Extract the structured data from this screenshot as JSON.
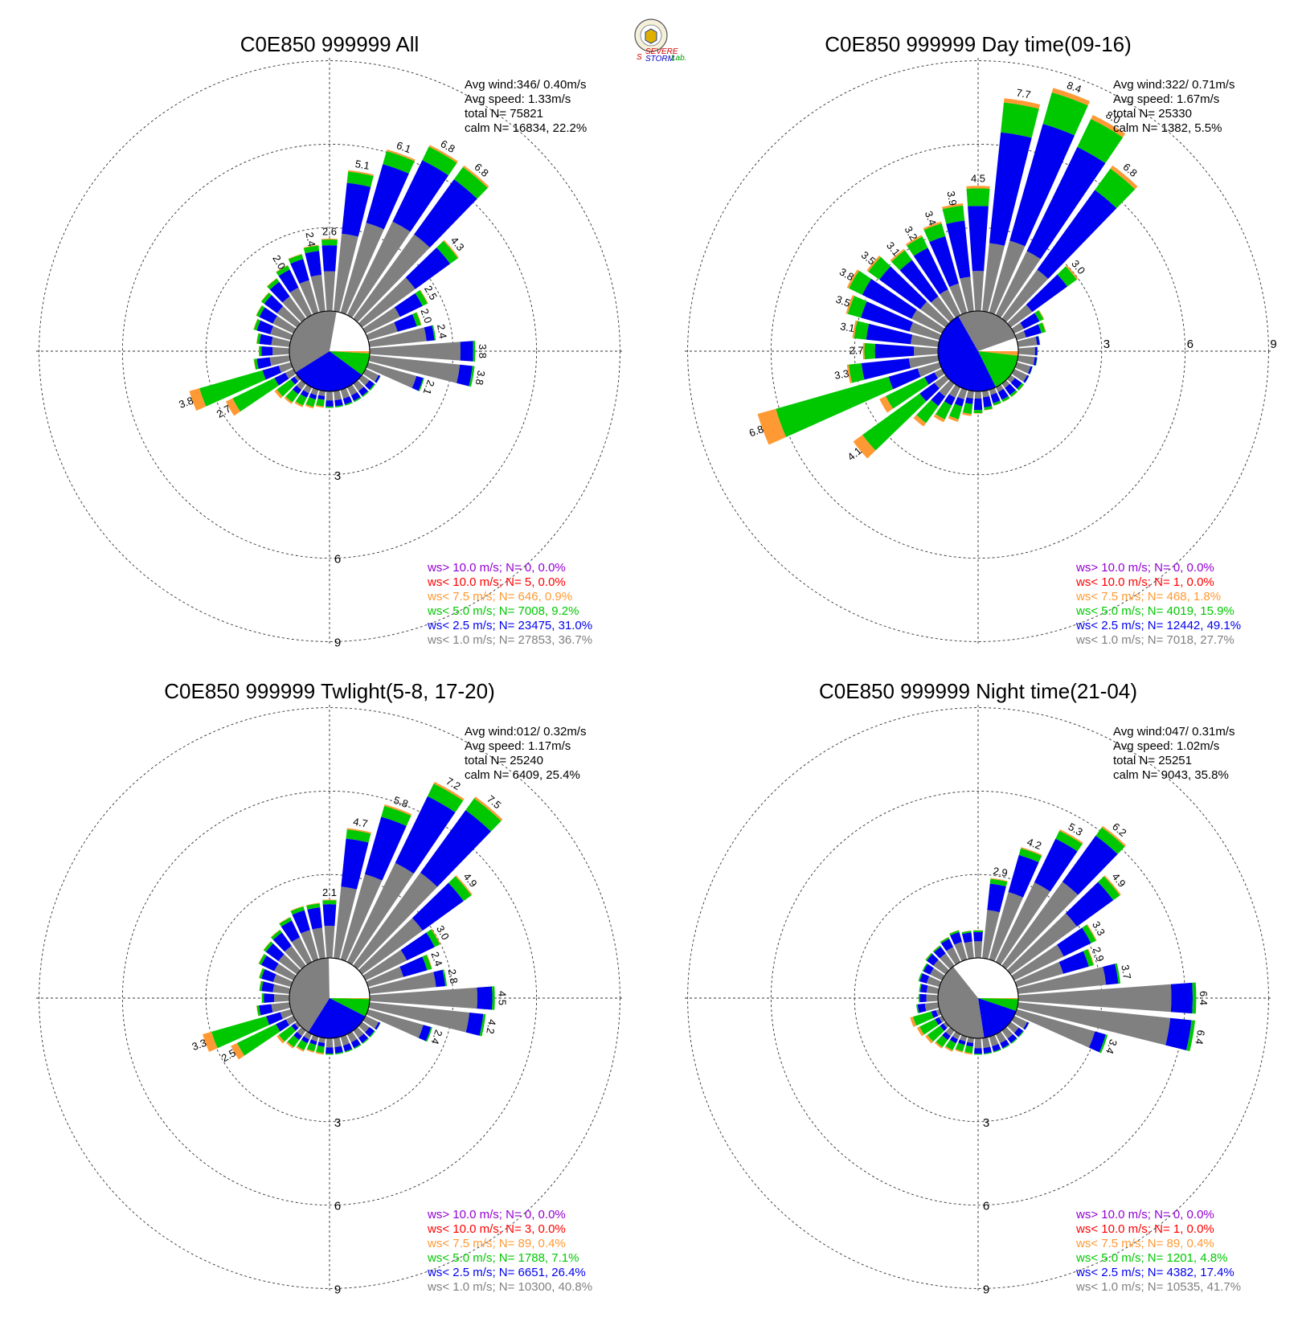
{
  "colors": {
    "lt1": "#808080",
    "lt2_5": "#0000f0",
    "lt5": "#00c800",
    "lt7_5": "#ff9933",
    "lt10": "#ff0000",
    "gt10": "#9400d3"
  },
  "logo": {
    "text_severe": "SEVERE",
    "text_storm": "STORM",
    "text_s": "S",
    "text_lab": "Lab."
  },
  "chart_data": [
    {
      "type": "wind-rose",
      "title": "C0E850 999999 All",
      "stats": [
        "Avg wind:346/ 0.40m/s",
        "Avg speed: 1.33m/s",
        "total N=      75821",
        "calm N=  16834,  22.2%"
      ],
      "rings": [
        3,
        6,
        9
      ],
      "direction_bars_pct": {
        "directions_deg": [
          0,
          10,
          20,
          30,
          40,
          50,
          60,
          70,
          80,
          90,
          100,
          110,
          120,
          130,
          140,
          150,
          160,
          170,
          180,
          190,
          200,
          210,
          220,
          230,
          240,
          250,
          260,
          270,
          280,
          290,
          300,
          310,
          320,
          330,
          340,
          350
        ],
        "totals": [
          2.6,
          5.1,
          6.1,
          6.8,
          6.8,
          4.3,
          2.5,
          2.0,
          2.4,
          3.8,
          3.8,
          2.1,
          0.6,
          0.6,
          0.6,
          0.6,
          0.6,
          0.6,
          0.6,
          0.6,
          0.7,
          0.8,
          0.9,
          1.0,
          2.7,
          3.8,
          1.3,
          1.1,
          1.2,
          1.4,
          1.5,
          1.6,
          1.8,
          2.0,
          2.2,
          2.4
        ]
      },
      "labeled_totals": [
        "2.6",
        "5.1",
        "6.1",
        "6.8",
        "6.8",
        "4.3",
        "2.5",
        "2.0",
        "2.4",
        "3.8",
        "3.8",
        "2.1",
        "2.7",
        "3.8"
      ],
      "calm_pie_pct": {
        "lt1": 36.7,
        "lt2_5": 31.0,
        "lt5": 9.2,
        "lt7_5": 0.9,
        "lt10": 0.0,
        "gt10": 0.0
      },
      "legend": [
        {
          "key": "gt10",
          "text": "ws> 10.0 m/s; N=     0,  0.0%"
        },
        {
          "key": "lt10",
          "text": "ws< 10.0 m/s; N=     5,  0.0%"
        },
        {
          "key": "lt7_5",
          "text": "ws<  7.5 m/s; N=   646,  0.9%"
        },
        {
          "key": "lt5",
          "text": "ws<  5.0 m/s; N=  7008,  9.2%"
        },
        {
          "key": "lt2_5",
          "text": "ws<  2.5 m/s; N= 23475, 31.0%"
        },
        {
          "key": "lt1",
          "text": "ws<  1.0 m/s; N= 27853, 36.7%"
        }
      ]
    },
    {
      "type": "wind-rose",
      "title": "C0E850 999999 Day time(09-16)",
      "stats": [
        "Avg wind:322/ 0.71m/s",
        "Avg speed: 1.67m/s",
        "total N=      25330",
        "calm N=   1382,   5.5%"
      ],
      "rings": [
        3,
        6,
        9
      ],
      "direction_bars_pct": {
        "directions_deg": [
          0,
          10,
          20,
          30,
          40,
          50,
          60,
          70,
          80,
          90,
          100,
          110,
          120,
          130,
          140,
          150,
          160,
          170,
          180,
          190,
          200,
          210,
          220,
          230,
          240,
          250,
          260,
          270,
          280,
          290,
          300,
          310,
          320,
          330,
          340,
          350
        ],
        "totals": [
          4.5,
          7.7,
          8.4,
          8.0,
          6.8,
          3.0,
          1.2,
          1.1,
          0.8,
          0.7,
          0.7,
          0.6,
          0.6,
          0.6,
          0.6,
          0.6,
          0.6,
          0.7,
          0.8,
          0.9,
          1.2,
          1.4,
          1.9,
          4.1,
          2.5,
          6.8,
          3.3,
          2.7,
          3.1,
          3.5,
          3.8,
          3.5,
          3.1,
          3.2,
          3.4,
          3.9
        ]
      },
      "labeled_totals": [
        "4.5",
        "7.7",
        "8.4",
        "8.0",
        "6.8",
        "3.0",
        "4.1",
        "6.8",
        "3.3",
        "2.7",
        "3.1",
        "3.5",
        "3.8",
        "3.5",
        "3.1",
        "3.2",
        "3.4",
        "3.9"
      ],
      "calm_pie_pct": {
        "lt1": 27.7,
        "lt2_5": 49.1,
        "lt5": 15.9,
        "lt7_5": 1.8,
        "lt10": 0.0,
        "gt10": 0.0
      },
      "legend": [
        {
          "key": "gt10",
          "text": "ws> 10.0 m/s; N=     0,  0.0%"
        },
        {
          "key": "lt10",
          "text": "ws< 10.0 m/s; N=     1,  0.0%"
        },
        {
          "key": "lt7_5",
          "text": "ws<  7.5 m/s; N=   468,  1.8%"
        },
        {
          "key": "lt5",
          "text": "ws<  5.0 m/s; N=  4019, 15.9%"
        },
        {
          "key": "lt2_5",
          "text": "ws<  2.5 m/s; N= 12442, 49.1%"
        },
        {
          "key": "lt1",
          "text": "ws<  1.0 m/s; N=  7018, 27.7%"
        }
      ]
    },
    {
      "type": "wind-rose",
      "title": "C0E850 999999 Twlight(5-8, 17-20)",
      "stats": [
        "Avg wind:012/ 0.32m/s",
        "Avg speed: 1.17m/s",
        "total N=      25240",
        "calm N=   6409,  25.4%"
      ],
      "rings": [
        3,
        6,
        9
      ],
      "direction_bars_pct": {
        "directions_deg": [
          0,
          10,
          20,
          30,
          40,
          50,
          60,
          70,
          80,
          90,
          100,
          110,
          120,
          130,
          140,
          150,
          160,
          170,
          180,
          190,
          200,
          210,
          220,
          230,
          240,
          250,
          260,
          270,
          280,
          290,
          300,
          310,
          320,
          330,
          340,
          350
        ],
        "totals": [
          2.1,
          4.7,
          5.8,
          7.2,
          7.5,
          4.9,
          3.0,
          2.4,
          2.8,
          4.5,
          4.2,
          2.4,
          0.6,
          0.6,
          0.6,
          0.6,
          0.6,
          0.6,
          0.6,
          0.6,
          0.6,
          0.7,
          0.8,
          0.9,
          2.5,
          3.3,
          1.2,
          1.0,
          1.1,
          1.2,
          1.4,
          1.5,
          1.6,
          1.8,
          2.0,
          2.0
        ]
      },
      "labeled_totals": [
        "2.1",
        "4.7",
        "5.8",
        "7.2",
        "7.5",
        "4.9",
        "3.0",
        "2.4",
        "2.8",
        "4.5",
        "4.2",
        "2.4",
        "2.5",
        "3.3"
      ],
      "calm_pie_pct": {
        "lt1": 40.8,
        "lt2_5": 26.4,
        "lt5": 7.1,
        "lt7_5": 0.4,
        "lt10": 0.0,
        "gt10": 0.0
      },
      "legend": [
        {
          "key": "gt10",
          "text": "ws> 10.0 m/s; N=     0,  0.0%"
        },
        {
          "key": "lt10",
          "text": "ws< 10.0 m/s; N=     3,  0.0%"
        },
        {
          "key": "lt7_5",
          "text": "ws<  7.5 m/s; N=    89,  0.4%"
        },
        {
          "key": "lt5",
          "text": "ws<  5.0 m/s; N=  1788,  7.1%"
        },
        {
          "key": "lt2_5",
          "text": "ws<  2.5 m/s; N=  6651, 26.4%"
        },
        {
          "key": "lt1",
          "text": "ws<  1.0 m/s; N= 10300, 40.8%"
        }
      ]
    },
    {
      "type": "wind-rose",
      "title": "C0E850 999999 Night time(21-04)",
      "stats": [
        "Avg wind:047/ 0.31m/s",
        "Avg speed: 1.02m/s",
        "total N=      25251",
        "calm N=   9043,  35.8%"
      ],
      "rings": [
        3,
        6,
        9
      ],
      "direction_bars_pct": {
        "directions_deg": [
          0,
          10,
          20,
          30,
          40,
          50,
          60,
          70,
          80,
          90,
          100,
          110,
          120,
          130,
          140,
          150,
          160,
          170,
          180,
          190,
          200,
          210,
          220,
          230,
          240,
          250,
          260,
          270,
          280,
          290,
          300,
          310,
          320,
          330,
          340,
          350
        ],
        "totals": [
          1.0,
          2.9,
          4.2,
          5.3,
          6.2,
          4.9,
          3.3,
          2.9,
          3.7,
          6.4,
          6.4,
          3.4,
          0.6,
          0.6,
          0.6,
          0.6,
          0.6,
          0.6,
          0.6,
          0.6,
          0.6,
          0.7,
          0.8,
          0.9,
          1.0,
          1.1,
          0.8,
          0.7,
          0.7,
          0.8,
          0.8,
          0.9,
          0.9,
          1.0,
          1.1,
          1.0
        ]
      },
      "labeled_totals": [
        "2.9",
        "4.2",
        "5.3",
        "6.2",
        "4.9",
        "3.3",
        "2.9",
        "3.7",
        "6.4",
        "6.4",
        "3.4"
      ],
      "calm_pie_pct": {
        "lt1": 41.7,
        "lt2_5": 17.4,
        "lt5": 4.8,
        "lt7_5": 0.4,
        "lt10": 0.0,
        "gt10": 0.0
      },
      "legend": [
        {
          "key": "gt10",
          "text": "ws> 10.0 m/s; N=     0,  0.0%"
        },
        {
          "key": "lt10",
          "text": "ws< 10.0 m/s; N=     1,  0.0%"
        },
        {
          "key": "lt7_5",
          "text": "ws<  7.5 m/s; N=    89,  0.4%"
        },
        {
          "key": "lt5",
          "text": "ws<  5.0 m/s; N=  1201,  4.8%"
        },
        {
          "key": "lt2_5",
          "text": "ws<  2.5 m/s; N=  4382, 17.4%"
        },
        {
          "key": "lt1",
          "text": "ws<  1.0 m/s; N= 10535, 41.7%"
        }
      ]
    }
  ]
}
